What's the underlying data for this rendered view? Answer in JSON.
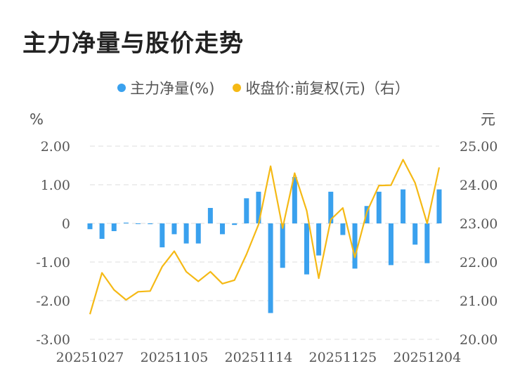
{
  "title": "主力净量与股价走势",
  "legend": {
    "series1": "主力净量(%)",
    "series2": "收盘价:前复权(元)（右）"
  },
  "colors": {
    "bar": "#3aa1ee",
    "line": "#f5b915",
    "grid": "#e3e3e3"
  },
  "chart_data": {
    "type": "bar+line",
    "title": "主力净量与股价走势",
    "left_axis": {
      "unit": "%",
      "range": [
        -3,
        2
      ],
      "ticks": [
        "2.00",
        "1.00",
        "0",
        "-1.00",
        "-2.00",
        "-3.00"
      ]
    },
    "right_axis": {
      "unit": "元",
      "range": [
        20,
        25
      ],
      "ticks": [
        "25.00",
        "24.00",
        "23.00",
        "22.00",
        "21.00",
        "20.00"
      ]
    },
    "x_tick_labels": [
      "20251027",
      "20251105",
      "20251114",
      "20251125",
      "20251204"
    ],
    "x_tick_positions": [
      0,
      7,
      14,
      21,
      28
    ],
    "grid": true,
    "legend_position": "top",
    "series": [
      {
        "name": "主力净量(%)",
        "kind": "bar",
        "axis": "left",
        "values": [
          -0.15,
          -0.4,
          -0.2,
          0.02,
          -0.01,
          -0.02,
          -0.62,
          -0.28,
          -0.52,
          -0.52,
          0.4,
          -0.28,
          -0.04,
          0.65,
          0.82,
          -2.32,
          -1.15,
          1.2,
          -1.32,
          -0.83,
          0.82,
          -0.3,
          -1.17,
          0.45,
          0.82,
          -1.08,
          0.88,
          -0.55,
          -1.03,
          0.88
        ]
      },
      {
        "name": "收盘价:前复权(元)（右）",
        "kind": "line",
        "axis": "right",
        "values": [
          20.65,
          21.72,
          21.28,
          21.02,
          21.23,
          21.25,
          21.88,
          22.28,
          21.75,
          21.5,
          21.75,
          21.44,
          21.53,
          22.2,
          22.97,
          24.48,
          22.88,
          24.3,
          23.33,
          21.58,
          23.1,
          23.4,
          22.12,
          23.3,
          23.98,
          23.99,
          24.65,
          24.05,
          23.0,
          24.45
        ]
      }
    ]
  }
}
